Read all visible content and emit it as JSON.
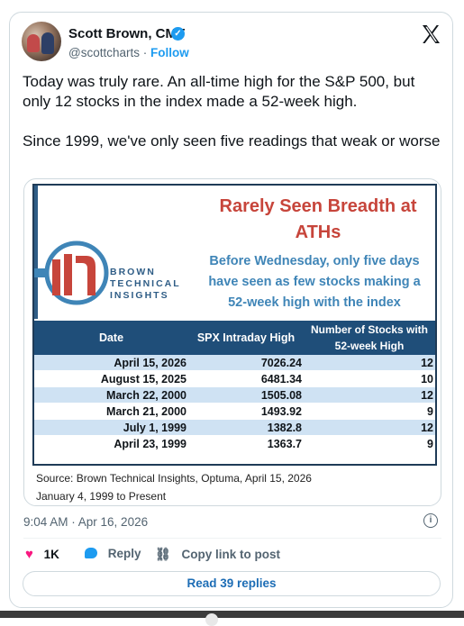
{
  "author": {
    "name": "Scott Brown, CMT",
    "handle": "@scottcharts",
    "separator": "·",
    "follow_label": "Follow"
  },
  "tweet": {
    "paragraph1": "Today was truly rare. An all-time high for the S&P 500, but only 12 stocks in the index made a 52-week high.",
    "paragraph2": "Since 1999, we've only seen five readings that weak or worse"
  },
  "infographic": {
    "brand_lines": [
      "BROWN",
      "TECHNICAL",
      "INSIGHTS"
    ],
    "headline_line1": "Rarely Seen Breadth at",
    "headline_line2": "ATHs",
    "subhead_line1": "Before Wednesday, only five days",
    "subhead_line2": "have seen as few stocks making a",
    "subhead_line3": "52-week high with the index",
    "columns": [
      "Date",
      "SPX Intraday High",
      "Number of Stocks with",
      "52-week High"
    ],
    "rows": [
      {
        "date": "April 15, 2026",
        "spx": "7026.24",
        "count": "12"
      },
      {
        "date": "August 15, 2025",
        "spx": "6481.34",
        "count": "10"
      },
      {
        "date": "March 22, 2000",
        "spx": "1505.08",
        "count": "12"
      },
      {
        "date": "March 21, 2000",
        "spx": "1493.92",
        "count": "9"
      },
      {
        "date": "July 1, 1999",
        "spx": "1382.8",
        "count": "12"
      },
      {
        "date": "April 23, 1999",
        "spx": "1363.7",
        "count": "9"
      }
    ],
    "source_line1": "Source: Brown Technical Insights, Optuma, April 15, 2026",
    "source_line2": "January 4, 1999 to Present",
    "colors": {
      "header_bg": "#1f4e79",
      "row_alt": "#cfe2f3",
      "headline": "#c7453b",
      "subhead": "#3f85b7"
    }
  },
  "meta": {
    "timestamp": "9:04 AM · Apr 16, 2026"
  },
  "actions": {
    "likes": "1K",
    "reply_label": "Reply",
    "copy_label": "Copy link to post",
    "read_replies_label": "Read 39 replies"
  },
  "icons": [
    "x-logo-icon",
    "verified-badge-icon",
    "info-icon",
    "heart-icon",
    "reply-icon",
    "link-icon"
  ]
}
